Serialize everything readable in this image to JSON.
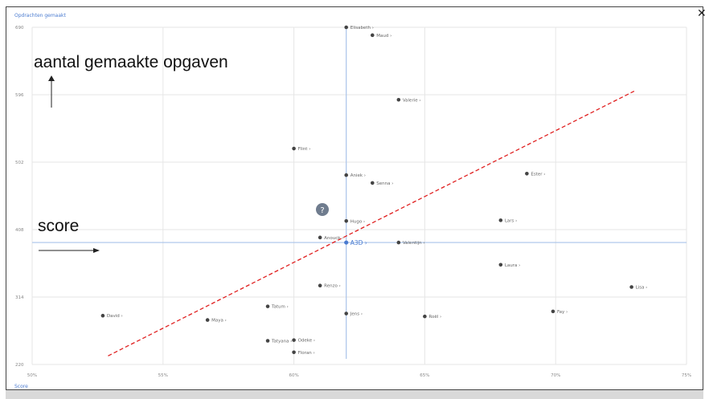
{
  "window": {
    "title": "Opdrachten gemaakt",
    "close_icon": "close-icon"
  },
  "chart_data": {
    "type": "scatter",
    "title": "Opdrachten gemaakt",
    "xlabel": "Score",
    "ylabel": "",
    "xlim": [
      50,
      75
    ],
    "ylim": [
      220,
      690
    ],
    "x_ticks": [
      "50%",
      "55%",
      "60%",
      "65%",
      "70%",
      "75%"
    ],
    "y_ticks": [
      "690",
      "596",
      "502",
      "408",
      "314",
      "220"
    ],
    "grid": true,
    "reference": {
      "label": "A3D",
      "x": 62,
      "y": 390
    },
    "points": [
      {
        "name": "Elisabeth",
        "x": 62.0,
        "y": 690
      },
      {
        "name": "Maud",
        "x": 63.0,
        "y": 679
      },
      {
        "name": "Valerie",
        "x": 64.0,
        "y": 589
      },
      {
        "name": "Flint",
        "x": 60.0,
        "y": 521
      },
      {
        "name": "Ester",
        "x": 68.9,
        "y": 486
      },
      {
        "name": "Aniek",
        "x": 62.0,
        "y": 484
      },
      {
        "name": "Senna",
        "x": 63.0,
        "y": 473
      },
      {
        "name": "Hugo",
        "x": 62.0,
        "y": 420
      },
      {
        "name": "Lars",
        "x": 67.9,
        "y": 421
      },
      {
        "name": "Anouck",
        "x": 61.0,
        "y": 397
      },
      {
        "name": "Valentijn",
        "x": 64.0,
        "y": 390
      },
      {
        "name": "Laura",
        "x": 67.9,
        "y": 359
      },
      {
        "name": "Renzo",
        "x": 61.0,
        "y": 330
      },
      {
        "name": "Lisa",
        "x": 72.9,
        "y": 328
      },
      {
        "name": "Tatum",
        "x": 59.0,
        "y": 301
      },
      {
        "name": "Fay",
        "x": 69.9,
        "y": 294
      },
      {
        "name": "Jens",
        "x": 62.0,
        "y": 291
      },
      {
        "name": "David",
        "x": 52.7,
        "y": 288
      },
      {
        "name": "Roël",
        "x": 65.0,
        "y": 287
      },
      {
        "name": "Maya",
        "x": 56.7,
        "y": 282
      },
      {
        "name": "Tatyana",
        "x": 59.0,
        "y": 253
      },
      {
        "name": "Odeke",
        "x": 60.0,
        "y": 254
      },
      {
        "name": "Floran",
        "x": 60.0,
        "y": 237
      }
    ],
    "trend_line": {
      "from": {
        "x": 52.9,
        "y": 232
      },
      "to": {
        "x": 73.0,
        "y": 601
      },
      "color": "#e02020",
      "style": "dashed"
    },
    "colors": {
      "point": "#444444",
      "reference": "#4a7bd0",
      "crosshair": "#a9c3ea",
      "grid": "#e6e6e6"
    }
  },
  "annotations": {
    "y_label": "aantal gemaakte opgaven",
    "x_label": "score"
  },
  "help_badge": {
    "text": "?"
  }
}
